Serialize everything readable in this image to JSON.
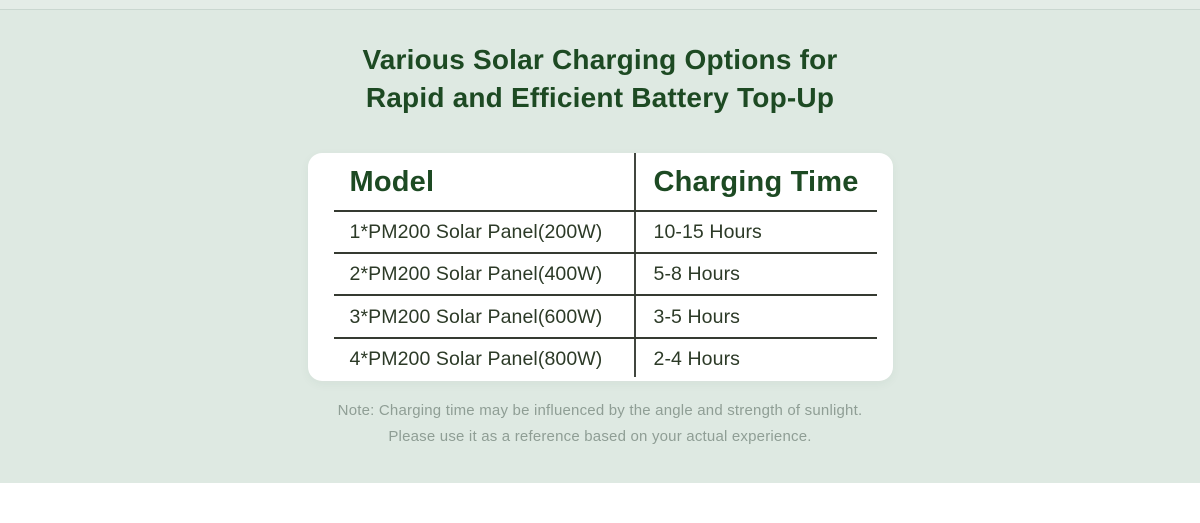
{
  "header": {
    "title_line1": "Various Solar Charging Options for",
    "title_line2": "Rapid and Efficient Battery Top-Up"
  },
  "table": {
    "headers": [
      "Model",
      "Charging Time"
    ],
    "rows": [
      {
        "model": "1*PM200 Solar Panel(200W)",
        "time": "10-15 Hours"
      },
      {
        "model": "2*PM200 Solar Panel(400W)",
        "time": "5-8 Hours"
      },
      {
        "model": "3*PM200 Solar Panel(600W)",
        "time": "3-5 Hours"
      },
      {
        "model": "4*PM200 Solar Panel(800W)",
        "time": "2-4 Hours"
      }
    ]
  },
  "note": {
    "line1": "Note: Charging time may be influenced by the angle and strength of sunlight.",
    "line2": "Please use it as a reference based on your actual experience."
  },
  "colors": {
    "section_background": "#dee9e2",
    "card_background": "#ffffff",
    "heading_green": "#1d4a23",
    "body_text": "#2c3a27",
    "divider_line": "#3a3f38",
    "note_text": "#8f9e95"
  },
  "chart_data": {
    "type": "table",
    "title": "Various Solar Charging Options for Rapid and Efficient Battery Top-Up",
    "columns": [
      "Model",
      "Charging Time"
    ],
    "rows": [
      [
        "1*PM200 Solar Panel(200W)",
        "10-15 Hours"
      ],
      [
        "2*PM200 Solar Panel(400W)",
        "5-8 Hours"
      ],
      [
        "3*PM200 Solar Panel(600W)",
        "3-5 Hours"
      ],
      [
        "4*PM200 Solar Panel(800W)",
        "2-4 Hours"
      ]
    ]
  }
}
